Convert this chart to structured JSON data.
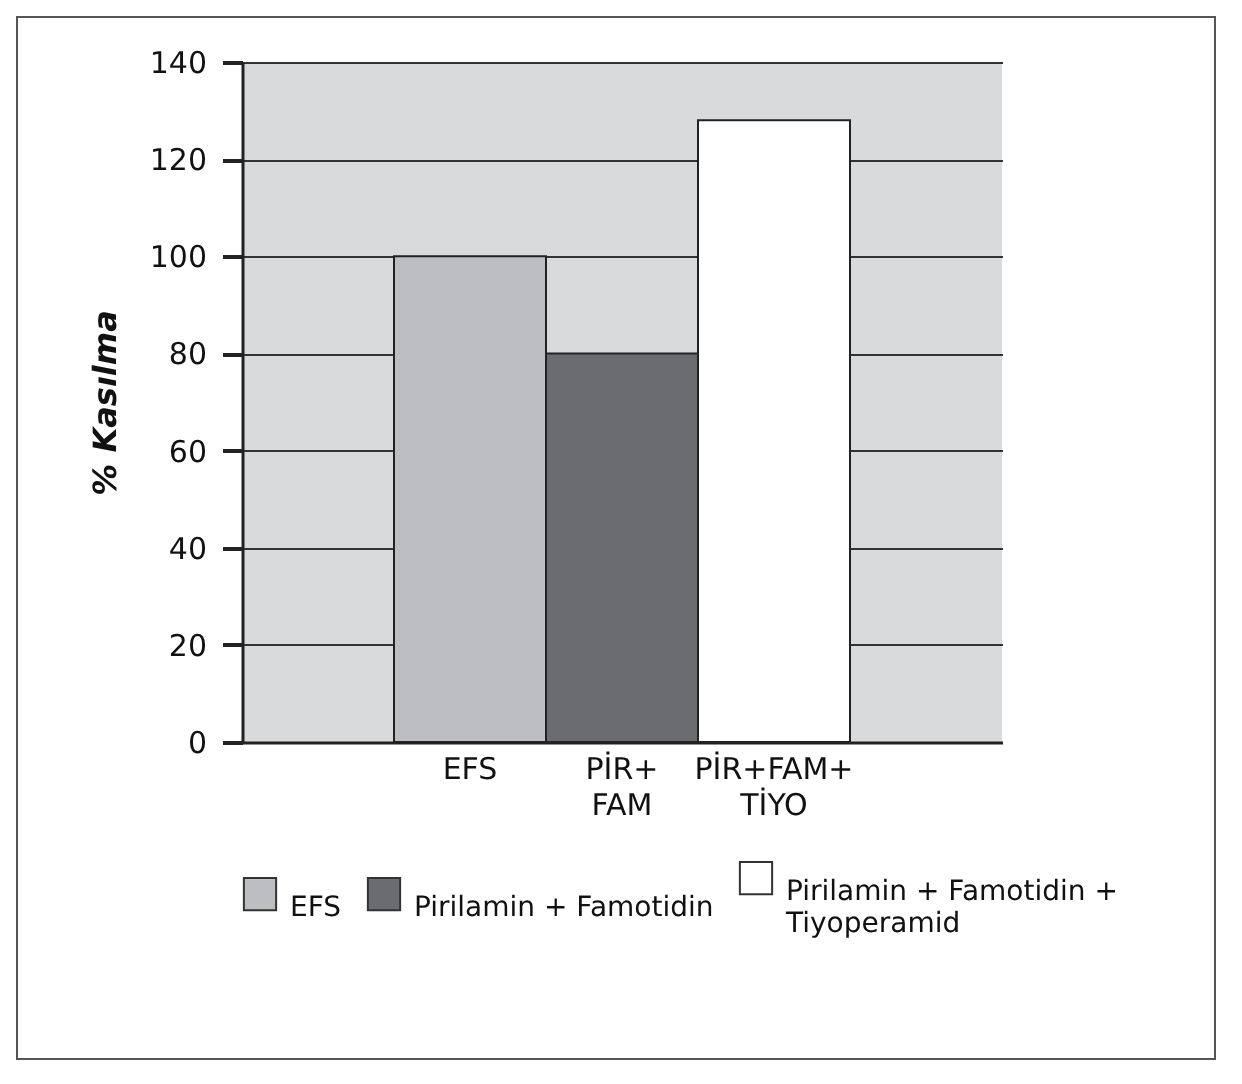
{
  "chart_data": {
    "type": "bar",
    "ylabel": "% Kasılma",
    "categories": [
      null,
      "EFS",
      "PİR+ FAM",
      "PİR+FAM+ TİYO",
      null
    ],
    "series": [
      {
        "name": "EFS",
        "color": "#bdbec2",
        "values": [
          null,
          100,
          null,
          null,
          null
        ]
      },
      {
        "name": "Pirilamin + Famotidin",
        "color": "#6b6c70",
        "values": [
          null,
          null,
          80,
          null,
          null
        ]
      },
      {
        "name": "Pirilamin + Famotidin + Tiyoperamid",
        "color": "#ffffff",
        "values": [
          null,
          null,
          null,
          128,
          null
        ]
      }
    ],
    "ylim": [
      0,
      140
    ],
    "yticks": [
      0,
      20,
      40,
      60,
      80,
      100,
      120,
      140
    ],
    "grid": "y",
    "legend": "bottom"
  }
}
